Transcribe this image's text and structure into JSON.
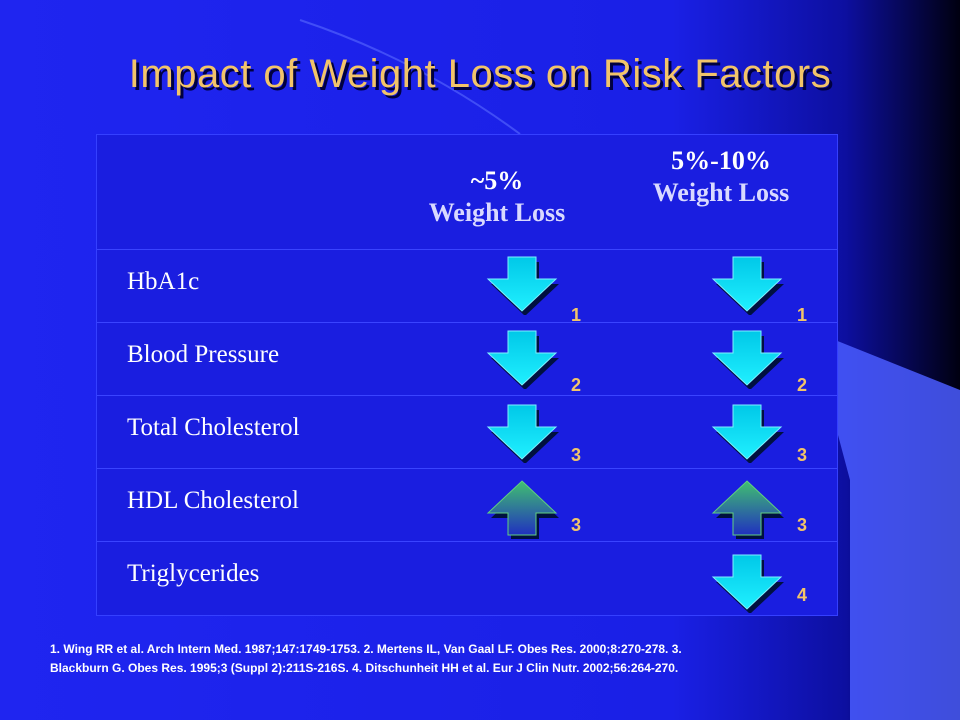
{
  "title": "Impact of Weight Loss on Risk Factors",
  "columns": [
    {
      "line1": "~5%",
      "line2": "Weight Loss"
    },
    {
      "line1": "5%-10%",
      "line2": "Weight Loss"
    }
  ],
  "rows": [
    {
      "label": "HbA1c",
      "col1": {
        "direction": "down",
        "ref": "1"
      },
      "col2": {
        "direction": "down",
        "ref": "1"
      }
    },
    {
      "label": "Blood Pressure",
      "col1": {
        "direction": "down",
        "ref": "2"
      },
      "col2": {
        "direction": "down",
        "ref": "2"
      }
    },
    {
      "label": "Total Cholesterol",
      "col1": {
        "direction": "down",
        "ref": "3"
      },
      "col2": {
        "direction": "down",
        "ref": "3"
      }
    },
    {
      "label": "HDL Cholesterol",
      "col1": {
        "direction": "up",
        "ref": "3"
      },
      "col2": {
        "direction": "up",
        "ref": "3"
      }
    },
    {
      "label": "Triglycerides",
      "col1": null,
      "col2": {
        "direction": "down",
        "ref": "4"
      }
    }
  ],
  "footnote": {
    "line1": "1. Wing RR et al. Arch Intern Med. 1987;147:1749-1753.  2. Mertens IL, Van Gaal LF. Obes Res. 2000;8:270-278.  3.",
    "line2": "Blackburn G. Obes Res. 1995;3 (Suppl 2):211S-216S.  4. Ditschunheit HH et al. Eur J Clin Nutr. 2002;56:264-270."
  },
  "colors": {
    "background": "#1f25f0",
    "title": "#f2c46a",
    "arrow_down": "#00e0ff",
    "arrow_up": "#3cb371",
    "reference": "#f2c46a"
  },
  "icons": {
    "down": "down-arrow-icon",
    "up": "up-arrow-icon"
  }
}
